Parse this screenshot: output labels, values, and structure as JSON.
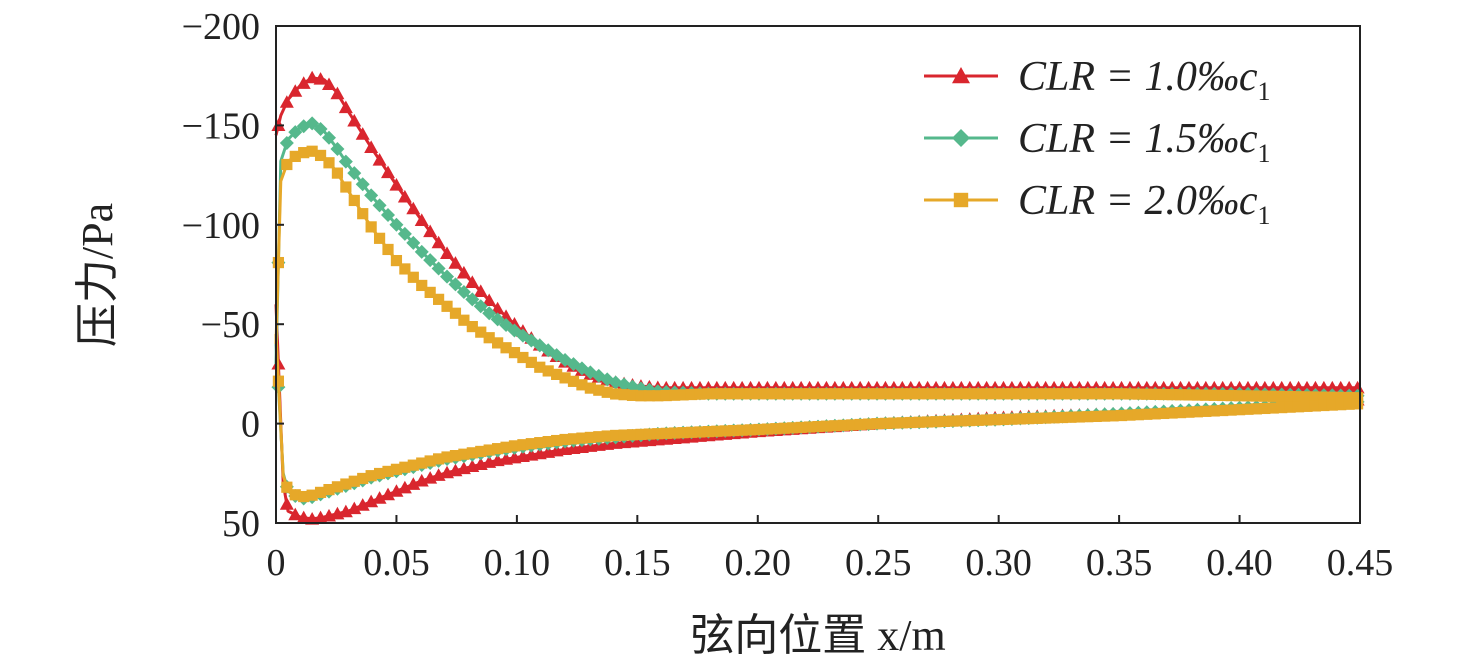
{
  "chart_data": {
    "type": "line",
    "title": "",
    "xlabel": "弦向位置 x/m",
    "ylabel": "压力/Pa",
    "xlim": [
      0,
      0.45
    ],
    "ylim": [
      -200,
      50
    ],
    "y_inverted": true,
    "x_ticks": [
      "0",
      "0.05",
      "0.10",
      "0.15",
      "0.20",
      "0.25",
      "0.30",
      "0.35",
      "0.40",
      "0.45"
    ],
    "y_ticks": [
      "−200",
      "−150",
      "−100",
      "−50",
      "0",
      "50"
    ],
    "legend_position": "top-right",
    "grid": false,
    "series": [
      {
        "name": "CLR = 1.0‰c1",
        "legend": {
          "main": "CLR = 1.0‰c",
          "sub": "1"
        },
        "color": "#d9262e",
        "marker": "triangle",
        "upper": {
          "x": [
            0,
            0.002,
            0.005,
            0.01,
            0.015,
            0.02,
            0.025,
            0.03,
            0.04,
            0.05,
            0.06,
            0.07,
            0.08,
            0.09,
            0.1,
            0.11,
            0.12,
            0.13,
            0.14,
            0.15,
            0.16,
            0.18,
            0.2,
            0.25,
            0.3,
            0.35,
            0.4,
            0.45
          ],
          "y": [
            -145,
            -155,
            -163,
            -170,
            -174,
            -173,
            -167,
            -157,
            -138,
            -120,
            -103,
            -87,
            -73,
            -60,
            -49,
            -39,
            -31,
            -25,
            -21,
            -19,
            -18,
            -18,
            -18,
            -18,
            -18,
            -18,
            -18,
            -18
          ]
        },
        "lower": {
          "x": [
            0,
            0.003,
            0.005,
            0.01,
            0.015,
            0.02,
            0.03,
            0.04,
            0.05,
            0.06,
            0.07,
            0.08,
            0.09,
            0.1,
            0.12,
            0.14,
            0.16,
            0.18,
            0.2,
            0.25,
            0.3,
            0.35,
            0.4,
            0.45
          ],
          "y": [
            -60,
            30,
            44,
            47,
            48,
            47,
            44,
            39,
            34,
            29,
            25,
            22,
            19,
            17,
            13,
            10,
            8,
            6,
            4,
            0,
            -3,
            -5,
            -8,
            -12
          ]
        }
      },
      {
        "name": "CLR = 1.5‰c1",
        "legend": {
          "main": "CLR = 1.5‰c",
          "sub": "1"
        },
        "color": "#55b88c",
        "marker": "diamond",
        "upper": {
          "x": [
            0,
            0.002,
            0.005,
            0.01,
            0.015,
            0.02,
            0.025,
            0.03,
            0.04,
            0.05,
            0.06,
            0.07,
            0.08,
            0.09,
            0.1,
            0.11,
            0.12,
            0.13,
            0.14,
            0.15,
            0.16,
            0.18,
            0.2,
            0.25,
            0.3,
            0.35,
            0.4,
            0.45
          ],
          "y": [
            -30,
            -132,
            -143,
            -149,
            -151,
            -147,
            -139,
            -130,
            -114,
            -100,
            -87,
            -75,
            -64,
            -54,
            -46,
            -39,
            -32,
            -26,
            -21,
            -18,
            -16,
            -15,
            -15,
            -15,
            -15,
            -15,
            -15,
            -14
          ]
        },
        "lower": {
          "x": [
            0,
            0.003,
            0.005,
            0.01,
            0.015,
            0.02,
            0.03,
            0.04,
            0.05,
            0.06,
            0.07,
            0.08,
            0.09,
            0.1,
            0.12,
            0.14,
            0.16,
            0.18,
            0.2,
            0.25,
            0.3,
            0.35,
            0.4,
            0.45
          ],
          "y": [
            -40,
            25,
            34,
            38,
            37,
            35,
            31,
            27,
            24,
            21,
            18,
            16,
            14,
            12,
            9,
            7,
            5,
            4,
            3,
            0,
            -2,
            -5,
            -8,
            -11
          ]
        }
      },
      {
        "name": "CLR = 2.0‰c1",
        "legend": {
          "main": "CLR = 2.0‰c",
          "sub": "1"
        },
        "color": "#e6a829",
        "marker": "square",
        "upper": {
          "x": [
            0,
            0.002,
            0.005,
            0.01,
            0.015,
            0.02,
            0.025,
            0.03,
            0.04,
            0.05,
            0.06,
            0.07,
            0.08,
            0.09,
            0.1,
            0.11,
            0.12,
            0.13,
            0.14,
            0.15,
            0.16,
            0.18,
            0.2,
            0.25,
            0.3,
            0.35,
            0.4,
            0.45
          ],
          "y": [
            -40,
            -122,
            -132,
            -136,
            -137,
            -134,
            -127,
            -117,
            -98,
            -82,
            -70,
            -60,
            -50,
            -42,
            -35,
            -28,
            -23,
            -18,
            -15,
            -14,
            -14,
            -15,
            -15,
            -15,
            -15,
            -15,
            -14,
            -13
          ]
        },
        "lower": {
          "x": [
            0,
            0.003,
            0.005,
            0.01,
            0.015,
            0.02,
            0.03,
            0.04,
            0.05,
            0.06,
            0.07,
            0.08,
            0.09,
            0.1,
            0.12,
            0.14,
            0.16,
            0.18,
            0.2,
            0.25,
            0.3,
            0.35,
            0.4,
            0.45
          ],
          "y": [
            -45,
            26,
            34,
            37,
            36,
            34,
            30,
            26,
            23,
            20,
            17,
            15,
            13,
            11,
            8,
            6,
            5,
            4,
            3,
            0,
            -2,
            -4,
            -7,
            -10
          ]
        }
      }
    ]
  }
}
